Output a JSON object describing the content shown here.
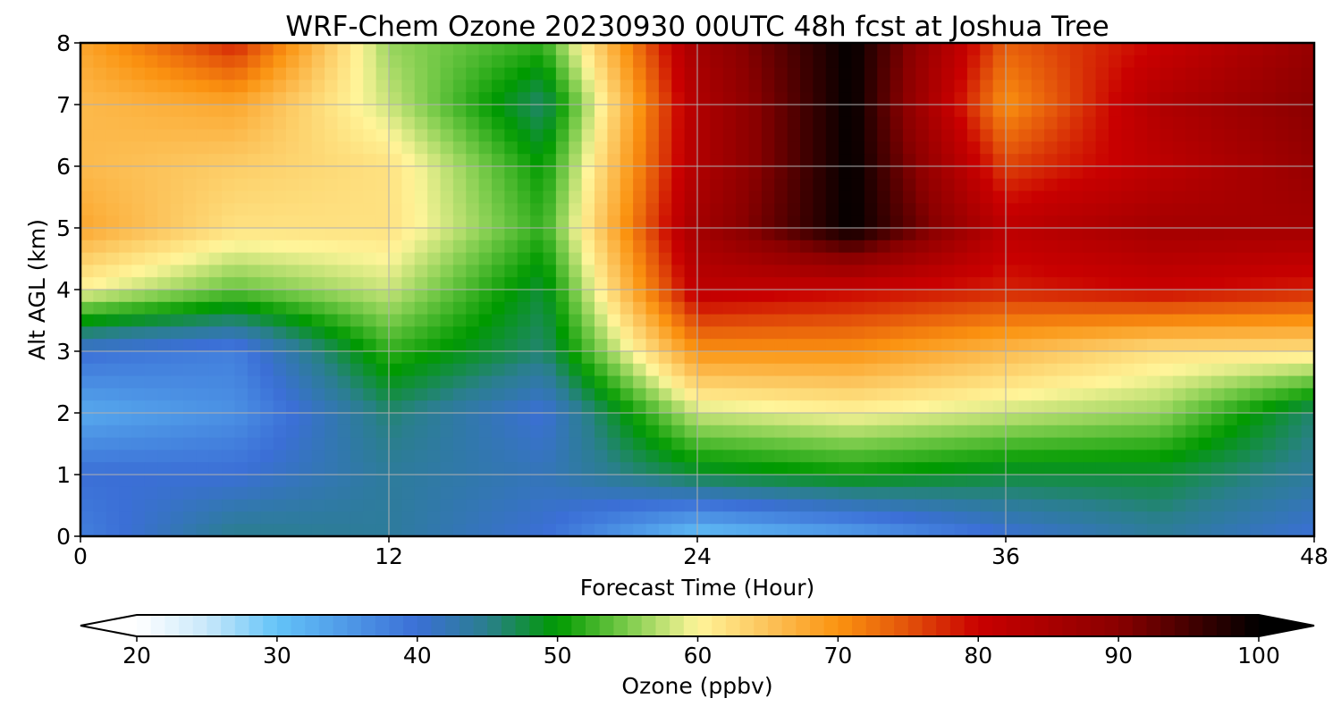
{
  "chart_data": {
    "type": "heatmap",
    "title": "WRF-Chem Ozone  20230930 00UTC 48h fcst at Joshua Tree",
    "xlabel": "Forecast Time (Hour)",
    "ylabel": "Alt AGL (km)",
    "xlim": [
      0,
      48
    ],
    "ylim": [
      0,
      8
    ],
    "x_ticks": [
      0,
      12,
      24,
      36,
      48
    ],
    "y_ticks": [
      0,
      1,
      2,
      3,
      4,
      5,
      6,
      7,
      8
    ],
    "grid": true,
    "x": [
      0,
      6,
      12,
      18,
      24,
      30,
      36,
      42,
      48
    ],
    "y": [
      0,
      1,
      2,
      3,
      4,
      5,
      6,
      7,
      8
    ],
    "z_units": "ppbv",
    "z_rows_by_altitude": [
      [
        38,
        45,
        44,
        40,
        30,
        34,
        40,
        44,
        40
      ],
      [
        40,
        40,
        44,
        42,
        48,
        50,
        48,
        48,
        44
      ],
      [
        33,
        36,
        46,
        40,
        58,
        60,
        58,
        56,
        46
      ],
      [
        40,
        38,
        52,
        46,
        70,
        70,
        66,
        62,
        62
      ],
      [
        60,
        54,
        58,
        48,
        82,
        80,
        78,
        80,
        78
      ],
      [
        68,
        62,
        62,
        52,
        86,
        100,
        82,
        86,
        86
      ],
      [
        66,
        64,
        62,
        50,
        84,
        100,
        76,
        82,
        88
      ],
      [
        66,
        68,
        58,
        46,
        84,
        100,
        70,
        84,
        90
      ],
      [
        68,
        78,
        56,
        52,
        86,
        100,
        74,
        80,
        88
      ]
    ],
    "colorbar": {
      "label": "Ozone  (ppbv)",
      "min": 20,
      "max": 100,
      "ticks": [
        20,
        30,
        40,
        50,
        60,
        70,
        80,
        90,
        100
      ],
      "extend": "both",
      "stops": [
        {
          "v": 20,
          "c": "#ffffff"
        },
        {
          "v": 25,
          "c": "#c8e8fa"
        },
        {
          "v": 30,
          "c": "#63c3f8"
        },
        {
          "v": 40,
          "c": "#3b6fd6"
        },
        {
          "v": 45,
          "c": "#2a7f8d"
        },
        {
          "v": 50,
          "c": "#009a00"
        },
        {
          "v": 55,
          "c": "#7ccc4c"
        },
        {
          "v": 60,
          "c": "#fff59a"
        },
        {
          "v": 65,
          "c": "#fcc35a"
        },
        {
          "v": 70,
          "c": "#fb9310"
        },
        {
          "v": 75,
          "c": "#e3520a"
        },
        {
          "v": 80,
          "c": "#c90000"
        },
        {
          "v": 90,
          "c": "#8a0000"
        },
        {
          "v": 100,
          "c": "#000000"
        }
      ]
    }
  }
}
